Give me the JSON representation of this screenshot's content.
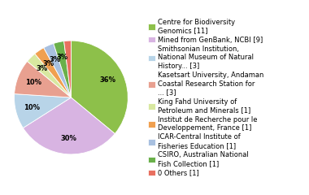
{
  "chart_data": {
    "type": "pie",
    "categories": [
      "Centre for Biodiversity\nGenomics [11]",
      "Mined from GenBank, NCBI [9]",
      "Smithsonian Institution,\nNational Museum of Natural\nHistory... [3]",
      "Kasetsart University, Andaman\nCoastal Research Station for\n... [3]",
      "King Fahd University of\nPetroleum and Minerals [1]",
      "Institut de Recherche pour le\nDeveloppement, France [1]",
      "ICAR-Central Institute of\nFisheries Education [1]",
      "CSIRO, Australian National\nFish Collection [1]",
      "0 Others [1]"
    ],
    "values": [
      36,
      30,
      10,
      10,
      3,
      3,
      3,
      3,
      2
    ],
    "value_labels": [
      "36%",
      "30%",
      "10%",
      "10%",
      "3%",
      "3%",
      "3%",
      "3%",
      null
    ],
    "data_labels": true,
    "colors": [
      "#8dc04a",
      "#d8b4e2",
      "#b8d4e8",
      "#e8a090",
      "#d8e8a0",
      "#f0a050",
      "#a8c0e0",
      "#6ab04a",
      "#e87060"
    ],
    "legend": "center left"
  }
}
